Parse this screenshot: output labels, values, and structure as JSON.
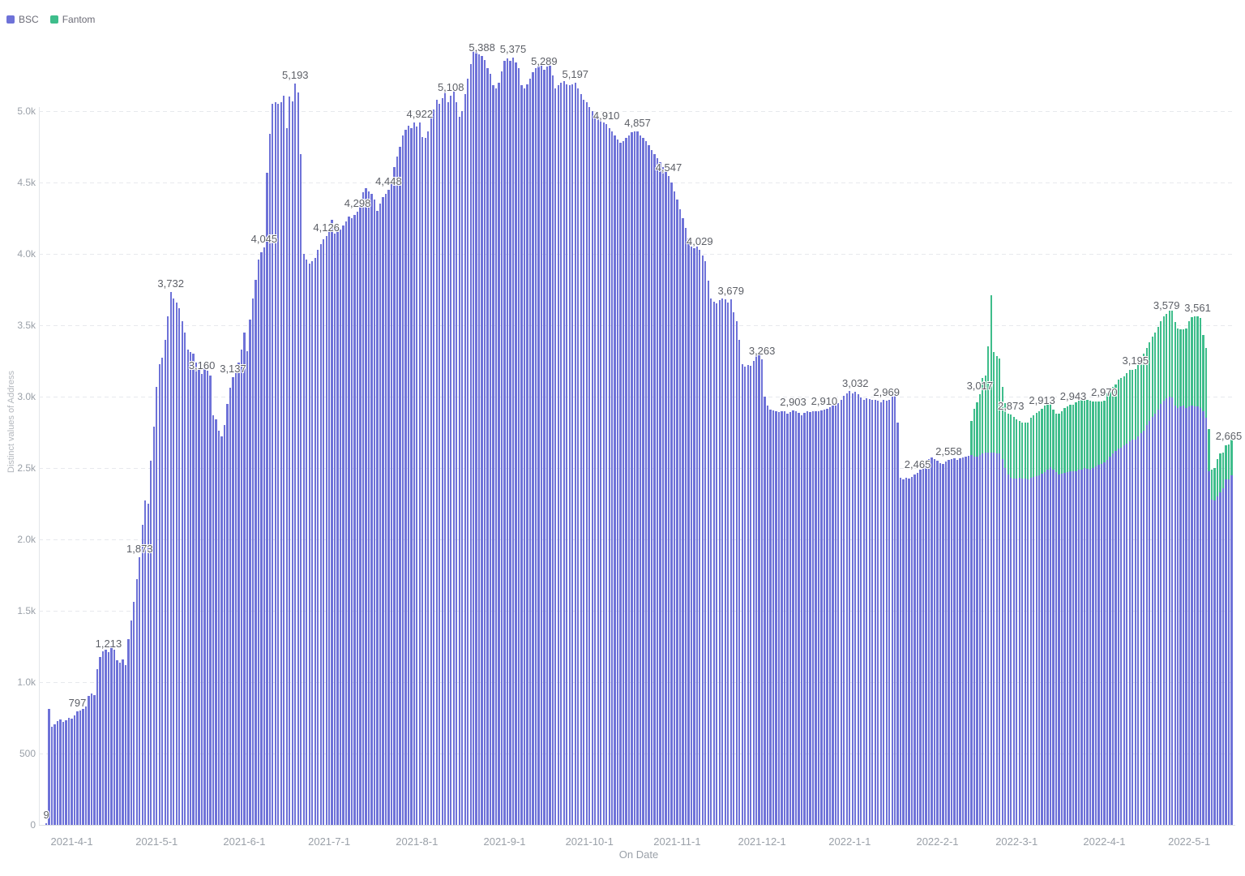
{
  "chart_data": {
    "type": "bar",
    "stacked": true,
    "title": "",
    "xlabel": "On Date",
    "ylabel": "Distinct values of Address",
    "start_date": "2021-3-23",
    "ylim": [
      0,
      5560
    ],
    "grid": "dashed-horizontal",
    "legend_position": "top-left",
    "legend": [
      {
        "name": "BSC",
        "color": "#6e72d8"
      },
      {
        "name": "Fantom",
        "color": "#3ebd8b"
      }
    ],
    "y_ticks": [
      {
        "value": 0,
        "label": "0"
      },
      {
        "value": 500,
        "label": "500"
      },
      {
        "value": 1000,
        "label": "1.0k"
      },
      {
        "value": 1500,
        "label": "1.5k"
      },
      {
        "value": 2000,
        "label": "2.0k"
      },
      {
        "value": 2500,
        "label": "2.5k"
      },
      {
        "value": 3000,
        "label": "3.0k"
      },
      {
        "value": 3500,
        "label": "3.5k"
      },
      {
        "value": 4000,
        "label": "4.0k"
      },
      {
        "value": 4500,
        "label": "4.5k"
      },
      {
        "value": 5000,
        "label": "5.0k"
      }
    ],
    "x_ticks": [
      {
        "day": 9,
        "label": "2021-4-1"
      },
      {
        "day": 39,
        "label": "2021-5-1"
      },
      {
        "day": 70,
        "label": "2021-6-1"
      },
      {
        "day": 100,
        "label": "2021-7-1"
      },
      {
        "day": 131,
        "label": "2021-8-1"
      },
      {
        "day": 162,
        "label": "2021-9-1"
      },
      {
        "day": 192,
        "label": "2021-10-1"
      },
      {
        "day": 223,
        "label": "2021-11-1"
      },
      {
        "day": 253,
        "label": "2021-12-1"
      },
      {
        "day": 284,
        "label": "2022-1-1"
      },
      {
        "day": 315,
        "label": "2022-2-1"
      },
      {
        "day": 343,
        "label": "2022-3-1"
      },
      {
        "day": 374,
        "label": "2022-4-1"
      },
      {
        "day": 404,
        "label": "2022-5-1"
      }
    ],
    "point_labels": [
      {
        "i": 0,
        "t": "9"
      },
      {
        "i": 11,
        "t": "797"
      },
      {
        "i": 22,
        "t": "1,213"
      },
      {
        "i": 33,
        "t": "1,873"
      },
      {
        "i": 44,
        "t": "3,732"
      },
      {
        "i": 55,
        "t": "3,160"
      },
      {
        "i": 66,
        "t": "3,137"
      },
      {
        "i": 77,
        "t": "4,045"
      },
      {
        "i": 88,
        "t": "5,193"
      },
      {
        "i": 99,
        "t": "4,126"
      },
      {
        "i": 110,
        "t": "4,298"
      },
      {
        "i": 121,
        "t": "4,448"
      },
      {
        "i": 132,
        "t": "4,922"
      },
      {
        "i": 143,
        "t": "5,108"
      },
      {
        "i": 154,
        "t": "5,388"
      },
      {
        "i": 165,
        "t": "5,375"
      },
      {
        "i": 176,
        "t": "5,289"
      },
      {
        "i": 187,
        "t": "5,197"
      },
      {
        "i": 198,
        "t": "4,910"
      },
      {
        "i": 209,
        "t": "4,857"
      },
      {
        "i": 220,
        "t": "4,547"
      },
      {
        "i": 231,
        "t": "4,029"
      },
      {
        "i": 242,
        "t": "3,679"
      },
      {
        "i": 253,
        "t": "3,263"
      },
      {
        "i": 264,
        "t": "2,903"
      },
      {
        "i": 275,
        "t": "2,910"
      },
      {
        "i": 286,
        "t": "3,032"
      },
      {
        "i": 297,
        "t": "2,969"
      },
      {
        "i": 308,
        "t": "2,465"
      },
      {
        "i": 319,
        "t": "2,558"
      },
      {
        "i": 330,
        "t": "3,017"
      },
      {
        "i": 341,
        "t": "2,873"
      },
      {
        "i": 352,
        "t": "2,913"
      },
      {
        "i": 363,
        "t": "2,943"
      },
      {
        "i": 374,
        "t": "2,970"
      },
      {
        "i": 385,
        "t": "3,195"
      },
      {
        "i": 396,
        "t": "3,579"
      },
      {
        "i": 407,
        "t": "3,561"
      },
      {
        "i": 418,
        "t": "2,665"
      }
    ],
    "series": [
      {
        "name": "BSC",
        "start_index": 0,
        "values": [
          9,
          810,
          690,
          705,
          725,
          740,
          720,
          735,
          750,
          745,
          765,
          797,
          800,
          815,
          830,
          905,
          920,
          910,
          1090,
          1175,
          1215,
          1230,
          1213,
          1250,
          1230,
          1155,
          1135,
          1160,
          1120,
          1300,
          1430,
          1560,
          1720,
          1873,
          2100,
          2270,
          2250,
          2550,
          2790,
          3070,
          3230,
          3270,
          3400,
          3560,
          3732,
          3690,
          3660,
          3620,
          3530,
          3450,
          3330,
          3310,
          3300,
          3240,
          3190,
          3160,
          3220,
          3180,
          3150,
          2870,
          2840,
          2760,
          2720,
          2800,
          2950,
          3060,
          3137,
          3180,
          3240,
          3330,
          3450,
          3320,
          3540,
          3690,
          3820,
          3960,
          4010,
          4045,
          4570,
          4840,
          5050,
          5060,
          5050,
          5060,
          5110,
          4880,
          5100,
          5070,
          5193,
          5130,
          4700,
          4000,
          3960,
          3930,
          3950,
          3970,
          4030,
          4070,
          4100,
          4126,
          4160,
          4240,
          4140,
          4180,
          4170,
          4200,
          4230,
          4260,
          4250,
          4270,
          4298,
          4350,
          4430,
          4460,
          4440,
          4420,
          4380,
          4300,
          4350,
          4400,
          4420,
          4448,
          4500,
          4610,
          4680,
          4750,
          4830,
          4870,
          4900,
          4880,
          4920,
          4890,
          4922,
          4820,
          4810,
          4860,
          4950,
          5010,
          5080,
          5050,
          5090,
          5130,
          5060,
          5108,
          5140,
          5060,
          4960,
          5000,
          5120,
          5230,
          5330,
          5420,
          5430,
          5400,
          5388,
          5360,
          5300,
          5260,
          5180,
          5160,
          5200,
          5280,
          5350,
          5370,
          5355,
          5375,
          5340,
          5300,
          5180,
          5160,
          5190,
          5230,
          5270,
          5300,
          5320,
          5330,
          5289,
          5310,
          5320,
          5250,
          5160,
          5180,
          5200,
          5210,
          5190,
          5180,
          5190,
          5197,
          5160,
          5120,
          5080,
          5060,
          5030,
          5000,
          4980,
          4960,
          4930,
          4920,
          4910,
          4880,
          4860,
          4830,
          4800,
          4780,
          4790,
          4810,
          4830,
          4850,
          4860,
          4857,
          4830,
          4810,
          4790,
          4760,
          4730,
          4700,
          4670,
          4640,
          4610,
          4580,
          4547,
          4500,
          4440,
          4380,
          4310,
          4250,
          4180,
          4110,
          4050,
          4040,
          4050,
          4029,
          3990,
          3950,
          3810,
          3690,
          3665,
          3655,
          3675,
          3690,
          3680,
          3660,
          3679,
          3590,
          3530,
          3400,
          3230,
          3210,
          3220,
          3215,
          3250,
          3300,
          3290,
          3263,
          3000,
          2940,
          2910,
          2905,
          2895,
          2890,
          2895,
          2900,
          2880,
          2890,
          2903,
          2895,
          2885,
          2870,
          2885,
          2895,
          2890,
          2900,
          2895,
          2900,
          2905,
          2910,
          2915,
          2925,
          2940,
          2935,
          2955,
          2980,
          3005,
          3025,
          3040,
          3025,
          3032,
          3015,
          2995,
          2980,
          2990,
          2985,
          2975,
          2980,
          2972,
          2962,
          2975,
          2969,
          2980,
          3000,
          3030,
          2820,
          2430,
          2420,
          2430,
          2425,
          2440,
          2455,
          2465,
          2490,
          2520,
          2545,
          2560,
          2575,
          2560,
          2550,
          2535,
          2530,
          2545,
          2558,
          2562,
          2570,
          2558,
          2566,
          2574,
          2580,
          2584,
          2590,
          2582,
          2580,
          2590,
          2600,
          2606,
          2610,
          2606,
          2610,
          2604,
          2600,
          2560,
          2500,
          2455,
          2433,
          2428,
          2424,
          2432,
          2428,
          2424,
          2420,
          2430,
          2440,
          2446,
          2450,
          2458,
          2470,
          2490,
          2508,
          2490,
          2470,
          2456,
          2460,
          2466,
          2470,
          2476,
          2478,
          2480,
          2486,
          2490,
          2500,
          2496,
          2490,
          2500,
          2510,
          2520,
          2530,
          2540,
          2558,
          2580,
          2600,
          2620,
          2638,
          2642,
          2660,
          2672,
          2690,
          2700,
          2700,
          2720,
          2742,
          2760,
          2800,
          2830,
          2858,
          2880,
          2910,
          2950,
          2970,
          2989,
          3000,
          2992,
          2940,
          2920,
          2930,
          2938,
          2920,
          2930,
          2935,
          2930,
          2931,
          2920,
          2900,
          2850,
          2480,
          2280,
          2270,
          2300,
          2330,
          2360,
          2420,
          2420,
          2450
        ]
      },
      {
        "name": "Fantom",
        "start_index": 327,
        "values": [
          240,
          330,
          380,
          427,
          530,
          540,
          745,
          1104,
          700,
          680,
          668,
          510,
          455,
          425,
          440,
          430,
          418,
          400,
          392,
          396,
          400,
          420,
          432,
          440,
          450,
          455,
          468,
          470,
          450,
          420,
          410,
          424,
          440,
          454,
          464,
          468,
          465,
          478,
          488,
          494,
          490,
          484,
          480,
          468,
          458,
          448,
          438,
          430,
          462,
          478,
          470,
          468,
          480,
          490,
          480,
          490,
          500,
          490,
          495,
          500,
          510,
          540,
          540,
          550,
          562,
          570,
          580,
          580,
          590,
          590,
          602,
          608,
          580,
          558,
          540,
          532,
          560,
          600,
          620,
          630,
          630,
          630,
          530,
          490,
          290,
          210,
          230,
          260,
          270,
          250,
          240,
          245,
          250
        ]
      }
    ]
  }
}
